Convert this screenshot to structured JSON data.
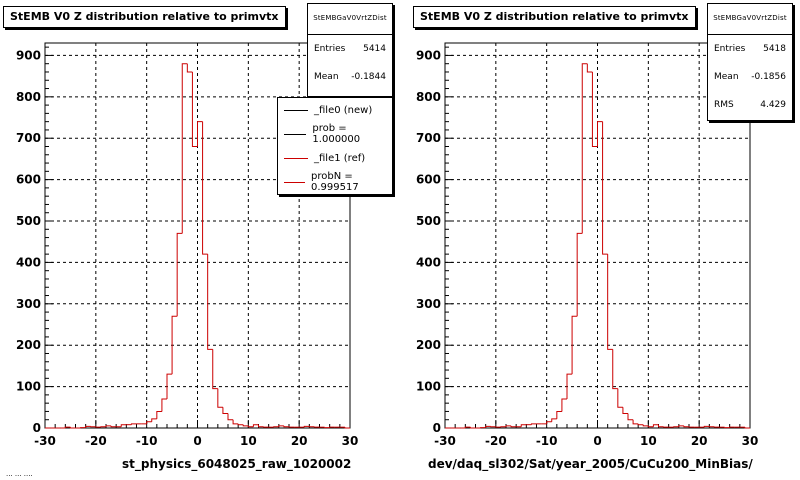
{
  "colors": {
    "hist": "#cc0000",
    "frame": "#000000",
    "background": "#ffffff"
  },
  "partial_footer": "... ... ....",
  "chart_data": [
    {
      "type": "bar",
      "title": "StEMB V0 Z distribution relative to primvtx",
      "xlabel": "st_physics_6048025_raw_1020002",
      "xlim": [
        -30,
        30
      ],
      "ylim": [
        0,
        930
      ],
      "xticks": [
        -30,
        -20,
        -10,
        0,
        10,
        20,
        30
      ],
      "yticks": [
        0,
        100,
        200,
        300,
        400,
        500,
        600,
        700,
        800,
        900
      ],
      "grid": true,
      "stats": {
        "name": "StEMBGaV0VrtZDist",
        "entries_label": "Entries",
        "entries": "5414",
        "mean_label": "Mean",
        "mean": "-0.1844"
      },
      "legend": {
        "placement": "top-right",
        "entries": [
          {
            "label": "_file0 (new)",
            "color": "#000000"
          },
          {
            "label": "prob = 1.000000",
            "color": "#000000"
          },
          {
            "label": "_file1 (ref)",
            "color": "#cc0000"
          },
          {
            "label": "probN = 0.999517",
            "color": "#cc0000"
          }
        ]
      },
      "bin_width": 1,
      "x": [
        -30,
        -29,
        -28,
        -27,
        -26,
        -25,
        -24,
        -23,
        -22,
        -21,
        -20,
        -19,
        -18,
        -17,
        -16,
        -15,
        -14,
        -13,
        -12,
        -11,
        -10,
        -9,
        -8,
        -7,
        -6,
        -5,
        -4,
        -3,
        -2,
        -1,
        0,
        1,
        2,
        3,
        4,
        5,
        6,
        7,
        8,
        9,
        10,
        11,
        12,
        13,
        14,
        15,
        16,
        17,
        18,
        19,
        20,
        21,
        22,
        23,
        24,
        25,
        26,
        27,
        28,
        29
      ],
      "series": [
        {
          "values": [
            0,
            0,
            0,
            0,
            2,
            0,
            0,
            1,
            4,
            3,
            2,
            3,
            5,
            3,
            3,
            8,
            8,
            10,
            10,
            10,
            15,
            22,
            40,
            70,
            130,
            270,
            470,
            880,
            860,
            680,
            740,
            420,
            190,
            95,
            50,
            35,
            20,
            10,
            8,
            5,
            3,
            8,
            3,
            2,
            2,
            3,
            5,
            3,
            2,
            2,
            2,
            4,
            3,
            2,
            2,
            1,
            2,
            2,
            2,
            0
          ]
        }
      ]
    },
    {
      "type": "bar",
      "title": "StEMB V0 Z distribution relative to primvtx",
      "xlabel": "dev/daq_sl302/Sat/year_2005/CuCu200_MinBias/",
      "xlim": [
        -30,
        30
      ],
      "ylim": [
        0,
        930
      ],
      "xticks": [
        -30,
        -20,
        -10,
        0,
        10,
        20,
        30
      ],
      "yticks": [
        0,
        100,
        200,
        300,
        400,
        500,
        600,
        700,
        800,
        900
      ],
      "grid": true,
      "stats": {
        "name": "StEMBGaV0VrtZDist",
        "entries_label": "Entries",
        "entries": "5418",
        "mean_label": "Mean",
        "mean": "-0.1856",
        "rms_label": "RMS",
        "rms": "4.429"
      },
      "bin_width": 1,
      "x": [
        -30,
        -29,
        -28,
        -27,
        -26,
        -25,
        -24,
        -23,
        -22,
        -21,
        -20,
        -19,
        -18,
        -17,
        -16,
        -15,
        -14,
        -13,
        -12,
        -11,
        -10,
        -9,
        -8,
        -7,
        -6,
        -5,
        -4,
        -3,
        -2,
        -1,
        0,
        1,
        2,
        3,
        4,
        5,
        6,
        7,
        8,
        9,
        10,
        11,
        12,
        13,
        14,
        15,
        16,
        17,
        18,
        19,
        20,
        21,
        22,
        23,
        24,
        25,
        26,
        27,
        28,
        29
      ],
      "series": [
        {
          "values": [
            0,
            0,
            0,
            0,
            2,
            0,
            0,
            1,
            4,
            3,
            2,
            3,
            5,
            3,
            3,
            8,
            8,
            10,
            10,
            10,
            15,
            22,
            40,
            70,
            130,
            270,
            470,
            880,
            860,
            680,
            740,
            420,
            190,
            95,
            50,
            35,
            20,
            10,
            8,
            5,
            3,
            8,
            3,
            2,
            2,
            3,
            5,
            3,
            2,
            2,
            2,
            4,
            3,
            2,
            2,
            1,
            2,
            2,
            2,
            0
          ]
        }
      ]
    }
  ]
}
